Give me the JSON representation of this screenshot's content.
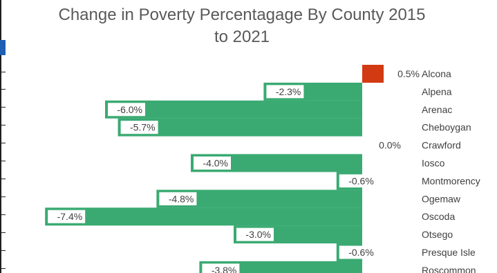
{
  "chart_data": {
    "type": "bar",
    "orientation": "horizontal",
    "title": "Change in Poverty Percentagage By County  2015 to 2021",
    "title_lines": [
      "Change in Poverty Percentagage By County  2015",
      "to 2021"
    ],
    "categories": [
      "Alcona",
      "Alpena",
      "Arenac",
      "Cheboygan",
      "Crawford",
      "Iosco",
      "Montmorency",
      "Ogemaw",
      "Oscoda",
      "Otsego",
      "Presque Isle",
      "Roscommon"
    ],
    "values": [
      0.5,
      -2.3,
      -6.0,
      -5.7,
      0.0,
      -4.0,
      -0.6,
      -4.8,
      -7.4,
      -3.0,
      -0.6,
      -3.8
    ],
    "data_labels": [
      "0.5%",
      "-2.3%",
      "-6.0%",
      "-5.7%",
      "0.0%",
      "-4.0%",
      "-0.6%",
      "-4.8%",
      "-7.4%",
      "-3.0%",
      "-0.6%",
      "-3.8%"
    ],
    "colors": {
      "positive": "#d13a12",
      "negative": "#3aaa72",
      "text": "#404040",
      "title": "#595959"
    },
    "grid": false,
    "legend": "none"
  }
}
